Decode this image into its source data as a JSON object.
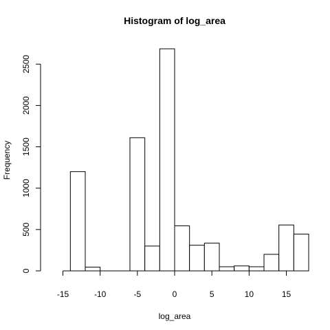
{
  "chart_data": {
    "type": "bar",
    "title": "Histogram of log_area",
    "xlabel": "log_area",
    "ylabel": "Frequency",
    "bins": [
      {
        "x0": -14,
        "x1": -12,
        "count": 1200
      },
      {
        "x0": -12,
        "x1": -10,
        "count": 45
      },
      {
        "x0": -10,
        "x1": -8,
        "count": 0
      },
      {
        "x0": -8,
        "x1": -6,
        "count": 0
      },
      {
        "x0": -6,
        "x1": -4,
        "count": 1610
      },
      {
        "x0": -4,
        "x1": -2,
        "count": 300
      },
      {
        "x0": -2,
        "x1": 0,
        "count": 2685
      },
      {
        "x0": 0,
        "x1": 2,
        "count": 545
      },
      {
        "x0": 2,
        "x1": 4,
        "count": 310
      },
      {
        "x0": 4,
        "x1": 6,
        "count": 335
      },
      {
        "x0": 6,
        "x1": 8,
        "count": 50
      },
      {
        "x0": 8,
        "x1": 10,
        "count": 60
      },
      {
        "x0": 10,
        "x1": 12,
        "count": 50
      },
      {
        "x0": 12,
        "x1": 14,
        "count": 200
      },
      {
        "x0": 14,
        "x1": 16,
        "count": 555
      },
      {
        "x0": 16,
        "x1": 18,
        "count": 445
      }
    ],
    "xlim": [
      -18,
      18
    ],
    "ylim": [
      0,
      2685
    ],
    "x_ticks": [
      -15,
      -10,
      -5,
      0,
      5,
      10,
      15
    ],
    "y_ticks": [
      0,
      500,
      1000,
      1500,
      2000,
      2500
    ],
    "x_tick_labels": [
      "-15",
      "-10",
      "-5",
      "0",
      "5",
      "10",
      "15"
    ],
    "y_tick_labels": [
      "0",
      "500",
      "1000",
      "1500",
      "2000",
      "2500"
    ],
    "grid": false,
    "legend": "none",
    "bar_fill": "#ffffff",
    "bar_stroke": "#000000"
  }
}
